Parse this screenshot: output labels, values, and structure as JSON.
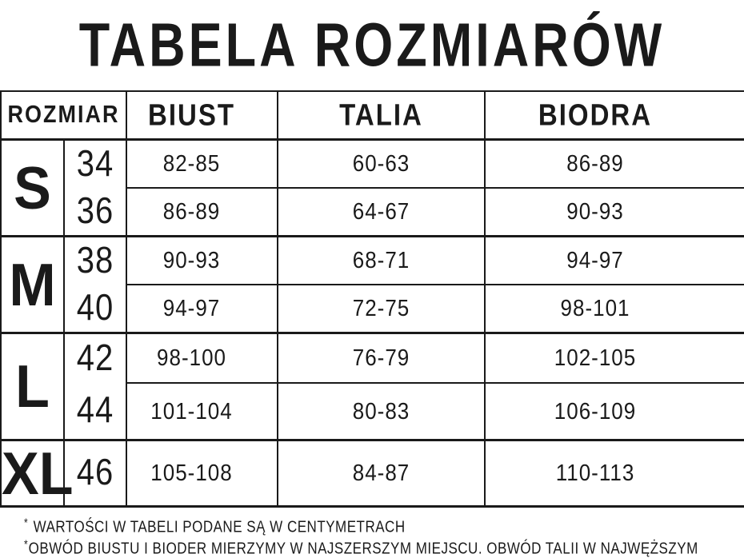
{
  "title": "TABELA ROZMIARÓW",
  "table": {
    "headers": {
      "rozmiar": "ROZMIAR",
      "biust": "BIUST",
      "talia": "TALIA",
      "biodra": "BIODRA"
    },
    "sections": [
      {
        "letter": "S",
        "rows": [
          {
            "size": "34",
            "biust": "82-85",
            "talia": "60-63",
            "biodra": "86-89"
          },
          {
            "size": "36",
            "biust": "86-89",
            "talia": "64-67",
            "biodra": "90-93"
          }
        ]
      },
      {
        "letter": "M",
        "rows": [
          {
            "size": "38",
            "biust": "90-93",
            "talia": "68-71",
            "biodra": "94-97"
          },
          {
            "size": "40",
            "biust": "94-97",
            "talia": "72-75",
            "biodra": "98-101"
          }
        ]
      },
      {
        "letter": "L",
        "rows": [
          {
            "size": "42",
            "biust": "98-100",
            "talia": "76-79",
            "biodra": "102-105"
          },
          {
            "size": "44",
            "biust": "101-104",
            "talia": "80-83",
            "biodra": "106-109"
          }
        ]
      },
      {
        "letter": "XL",
        "rows": [
          {
            "size": "46",
            "biust": "105-108",
            "talia": "84-87",
            "biodra": "110-113"
          }
        ]
      }
    ]
  },
  "footnotes": [
    {
      "marker": "*",
      "text": "WARTOŚCI W TABELI PODANE SĄ W CENTYMETRACH"
    },
    {
      "marker": "*",
      "text": "OBWÓD BIUSTU I BIODER MIERZYMY W NAJSZERSZYM MIEJSCU. OBWÓD TALII W NAJWĘŻSZYM"
    }
  ],
  "colors": {
    "ink": "#1a1a1a",
    "background": "#ffffff"
  }
}
